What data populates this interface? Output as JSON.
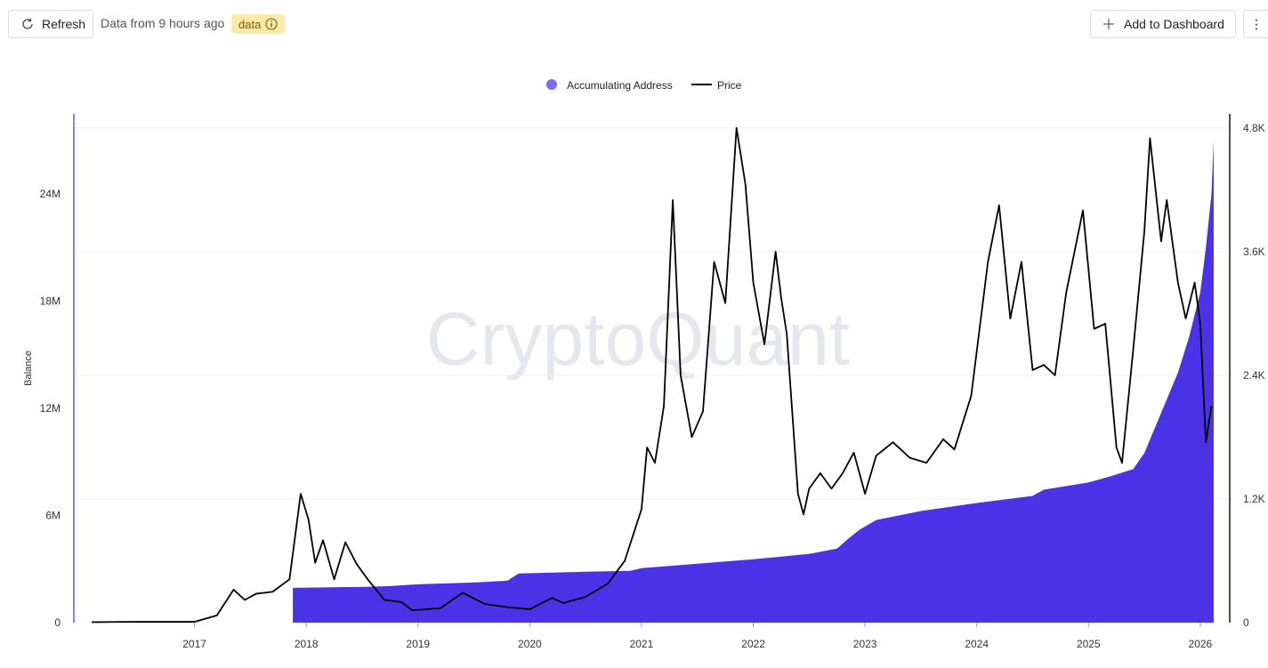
{
  "toolbar": {
    "refresh_label": "Refresh",
    "status_text": "Data from 9 hours ago",
    "badge_label": "data",
    "add_dashboard_label": "Add to Dashboard",
    "more_label": "⋮"
  },
  "colors": {
    "accent": "#4b32e6",
    "legend_dot": "#7b6cf0",
    "price_line": "#000000",
    "badge_bg": "#fbeaa8"
  },
  "chart_data": {
    "type": "area",
    "watermark": "CryptoQuant",
    "legend_position": "top-center",
    "grid": true,
    "x_ticks": [
      "2017",
      "2018",
      "2019",
      "2020",
      "2021",
      "2022",
      "2023",
      "2024",
      "2025",
      "2026"
    ],
    "x_range": [
      2016.0,
      2026.2
    ],
    "y_left": {
      "label": "Balance",
      "range": [
        0,
        27000000
      ],
      "ticks": [
        "0",
        "6M",
        "12M",
        "18M",
        "24M"
      ],
      "tick_values": [
        0,
        6000000,
        12000000,
        18000000,
        24000000
      ]
    },
    "y_right": {
      "label": "",
      "range": [
        0,
        4850
      ],
      "ticks": [
        "0",
        "1.2K",
        "2.4K",
        "3.6K",
        "4.8K"
      ],
      "tick_values": [
        0,
        1200,
        2400,
        3600,
        4800
      ]
    },
    "series": [
      {
        "name": "Accumulating Address",
        "axis": "left",
        "kind": "area",
        "x": [
          2017.88,
          2018.5,
          2018.75,
          2019.0,
          2019.5,
          2019.8,
          2019.9,
          2020.5,
          2020.9,
          2021.0,
          2021.5,
          2022.0,
          2022.5,
          2022.75,
          2022.85,
          2022.95,
          2023.1,
          2023.5,
          2024.0,
          2024.5,
          2024.6,
          2025.0,
          2025.2,
          2025.4,
          2025.5,
          2025.6,
          2025.7,
          2025.8,
          2025.9,
          2026.0,
          2026.05,
          2026.1,
          2026.12
        ],
        "y": [
          1950000,
          2000000,
          2050000,
          2150000,
          2250000,
          2350000,
          2750000,
          2850000,
          2900000,
          3050000,
          3300000,
          3550000,
          3850000,
          4150000,
          4700000,
          5200000,
          5750000,
          6250000,
          6700000,
          7100000,
          7450000,
          7850000,
          8200000,
          8600000,
          9500000,
          11000000,
          12500000,
          14000000,
          16000000,
          18500000,
          21000000,
          24000000,
          27000000
        ]
      },
      {
        "name": "Price",
        "axis": "right",
        "kind": "line",
        "x": [
          2016.08,
          2016.5,
          2017.0,
          2017.2,
          2017.35,
          2017.45,
          2017.55,
          2017.7,
          2017.85,
          2017.95,
          2018.02,
          2018.08,
          2018.15,
          2018.25,
          2018.35,
          2018.45,
          2018.55,
          2018.7,
          2018.85,
          2018.95,
          2019.2,
          2019.4,
          2019.6,
          2019.8,
          2020.0,
          2020.2,
          2020.3,
          2020.5,
          2020.7,
          2020.85,
          2021.0,
          2021.05,
          2021.12,
          2021.2,
          2021.28,
          2021.35,
          2021.45,
          2021.55,
          2021.65,
          2021.75,
          2021.85,
          2021.93,
          2022.0,
          2022.1,
          2022.2,
          2022.25,
          2022.3,
          2022.4,
          2022.45,
          2022.5,
          2022.6,
          2022.7,
          2022.8,
          2022.9,
          2023.0,
          2023.1,
          2023.25,
          2023.4,
          2023.55,
          2023.7,
          2023.8,
          2023.95,
          2024.1,
          2024.2,
          2024.3,
          2024.4,
          2024.5,
          2024.6,
          2024.7,
          2024.8,
          2024.95,
          2025.05,
          2025.15,
          2025.25,
          2025.3,
          2025.4,
          2025.5,
          2025.55,
          2025.65,
          2025.7,
          2025.8,
          2025.87,
          2025.95,
          2026.0,
          2026.05,
          2026.1
        ],
        "y": [
          5,
          8,
          8,
          70,
          320,
          220,
          280,
          300,
          420,
          1250,
          1000,
          580,
          800,
          420,
          780,
          570,
          420,
          220,
          200,
          120,
          140,
          290,
          180,
          150,
          130,
          240,
          190,
          250,
          380,
          600,
          1100,
          1700,
          1550,
          2100,
          4100,
          2400,
          1800,
          2050,
          3500,
          3100,
          4800,
          4250,
          3300,
          2700,
          3600,
          3150,
          2800,
          1250,
          1050,
          1300,
          1450,
          1300,
          1450,
          1650,
          1250,
          1620,
          1750,
          1600,
          1550,
          1780,
          1680,
          2200,
          3500,
          4050,
          2950,
          3500,
          2450,
          2500,
          2400,
          3200,
          4000,
          2850,
          2900,
          1700,
          1550,
          2650,
          3800,
          4700,
          3700,
          4100,
          3300,
          2950,
          3300,
          2900,
          1750,
          2100
        ]
      }
    ]
  }
}
